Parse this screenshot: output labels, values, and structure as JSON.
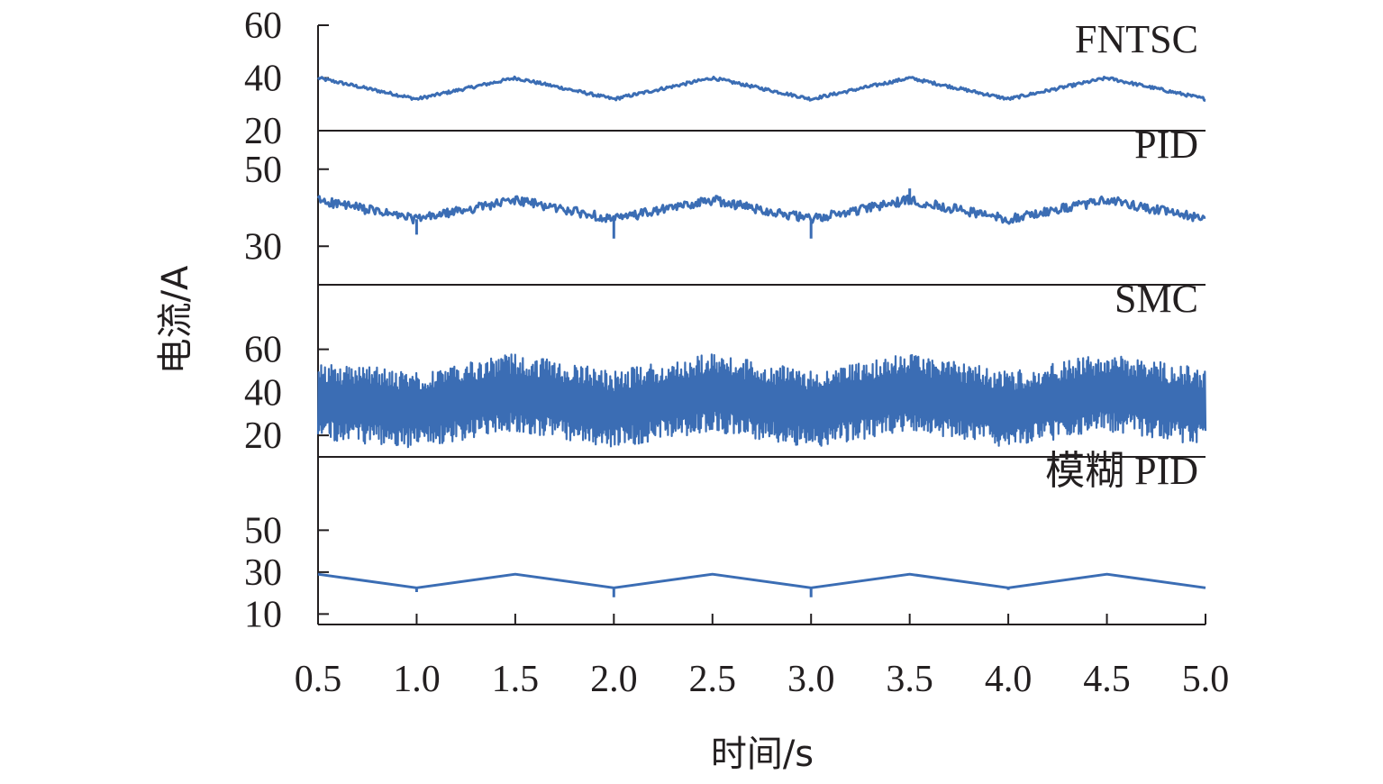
{
  "chart_data": {
    "type": "line",
    "xlabel": "时间/s",
    "ylabel": "电流/A",
    "xlim": [
      0.5,
      5.0
    ],
    "x_ticks": [
      "0.5",
      "1.0",
      "1.5",
      "2.0",
      "2.5",
      "3.0",
      "3.5",
      "4.0",
      "4.5",
      "5.0"
    ],
    "line_color": "#3b6db4",
    "axis_color": "#231f20",
    "panels": [
      {
        "name": "FNTSC",
        "ylim": [
          20,
          60
        ],
        "y_ticks": [
          "60",
          "40",
          "20"
        ],
        "y_tick_values": [
          60,
          40,
          20
        ],
        "x": [
          0.5,
          1.0,
          1.5,
          2.0,
          2.5,
          3.0,
          3.5,
          4.0,
          4.5,
          5.0
        ],
        "y": [
          40,
          32,
          40,
          32,
          40,
          32,
          40,
          32,
          40,
          32
        ],
        "noise": 0.6
      },
      {
        "name": "PID",
        "ylim": [
          20,
          60
        ],
        "y_ticks": [
          "50",
          "30"
        ],
        "y_tick_values": [
          50,
          30
        ],
        "x": [
          0.5,
          1.0,
          1.5,
          2.0,
          2.5,
          3.0,
          3.5,
          4.0,
          4.5,
          5.0
        ],
        "y": [
          42,
          37,
          42,
          37,
          42,
          37,
          42,
          37,
          42,
          37
        ],
        "noise": 1.2,
        "dips": [
          {
            "x": 1.0,
            "y": 33
          },
          {
            "x": 2.0,
            "y": 32
          },
          {
            "x": 3.0,
            "y": 32
          }
        ],
        "peaks": [
          {
            "x": 3.5,
            "y": 45
          }
        ]
      },
      {
        "name": "SMC",
        "ylim": [
          10,
          90
        ],
        "y_ticks": [
          "60",
          "40",
          "20"
        ],
        "y_tick_values": [
          60,
          40,
          20
        ],
        "x": [
          0.5,
          1.0,
          1.5,
          2.0,
          2.5,
          3.0,
          3.5,
          4.0,
          4.5,
          5.0
        ],
        "y": [
          36,
          32,
          40,
          32,
          40,
          32,
          40,
          32,
          40,
          33
        ],
        "noise": 18
      },
      {
        "name": "模糊 PID",
        "ylim": [
          5,
          85
        ],
        "y_ticks": [
          "50",
          "30",
          "10"
        ],
        "y_tick_values": [
          50,
          30,
          10
        ],
        "x": [
          0.5,
          1.0,
          1.5,
          2.0,
          2.5,
          3.0,
          3.5,
          4.0,
          4.5,
          5.0
        ],
        "y": [
          29,
          22.5,
          29,
          22.5,
          29,
          22.5,
          29,
          22.5,
          29,
          22.5
        ],
        "noise": 0,
        "dips": [
          {
            "x": 1.0,
            "y": 20.5
          },
          {
            "x": 2.0,
            "y": 18
          },
          {
            "x": 3.0,
            "y": 18
          },
          {
            "x": 4.0,
            "y": 21.5
          }
        ]
      }
    ]
  }
}
